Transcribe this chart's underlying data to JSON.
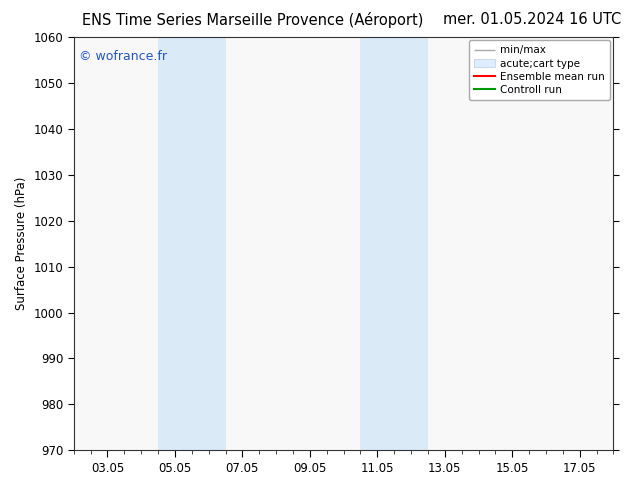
{
  "title_left": "ENS Time Series Marseille Provence (Aéroport)",
  "title_right": "mer. 01.05.2024 16 UTC",
  "ylabel": "Surface Pressure (hPa)",
  "watermark": "© wofrance.fr",
  "watermark_color": "#2255cc",
  "ylim": [
    970,
    1060
  ],
  "yticks": [
    970,
    980,
    990,
    1000,
    1010,
    1020,
    1030,
    1040,
    1050,
    1060
  ],
  "xtick_labels": [
    "03.05",
    "05.05",
    "07.05",
    "09.05",
    "11.05",
    "13.05",
    "15.05",
    "17.05"
  ],
  "xtick_positions": [
    2,
    4,
    6,
    8,
    10,
    12,
    14,
    16
  ],
  "xlim": [
    1,
    17
  ],
  "shaded_bands": [
    {
      "x_start": 3.5,
      "x_end": 5.5
    },
    {
      "x_start": 9.5,
      "x_end": 11.5
    }
  ],
  "shade_color": "#daeaf7",
  "plot_bg_color": "#f8f8f8",
  "figure_bg_color": "#ffffff",
  "legend_items": [
    {
      "label": "min/max",
      "color": "#aaaaaa",
      "lw": 1.0,
      "style": "line_with_caps"
    },
    {
      "label": "acute;cart type",
      "color": "#ddeeff",
      "lw": 6,
      "style": "thick"
    },
    {
      "label": "Ensemble mean run",
      "color": "#ff0000",
      "lw": 1.5,
      "style": "solid"
    },
    {
      "label": "Controll run",
      "color": "#009900",
      "lw": 1.5,
      "style": "solid"
    }
  ],
  "font_size_title": 10.5,
  "font_size_axis_label": 8.5,
  "font_size_tick": 8.5,
  "font_size_legend": 7.5,
  "font_size_watermark": 9
}
